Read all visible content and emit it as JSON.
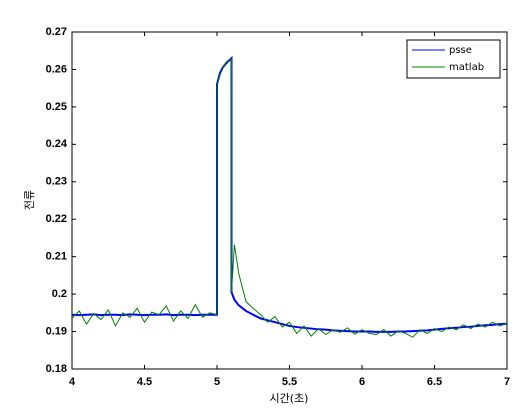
{
  "chart_data": {
    "type": "line",
    "x_label": "시간(초)",
    "y_label": "전류",
    "x": [
      4.0,
      4.05,
      4.1,
      4.15,
      4.2,
      4.25,
      4.3,
      4.35,
      4.4,
      4.45,
      4.5,
      4.55,
      4.6,
      4.65,
      4.7,
      4.75,
      4.8,
      4.85,
      4.9,
      4.95,
      5.0,
      5.0,
      5.02,
      5.04,
      5.06,
      5.08,
      5.1,
      5.1,
      5.12,
      5.15,
      5.2,
      5.25,
      5.3,
      5.35,
      5.4,
      5.45,
      5.5,
      5.55,
      5.6,
      5.65,
      5.7,
      5.75,
      5.8,
      5.85,
      5.9,
      5.95,
      6.0,
      6.05,
      6.1,
      6.15,
      6.2,
      6.25,
      6.3,
      6.35,
      6.4,
      6.45,
      6.5,
      6.55,
      6.6,
      6.65,
      6.7,
      6.75,
      6.8,
      6.85,
      6.9,
      6.95,
      7.0
    ],
    "series": [
      {
        "name": "psse",
        "color": "#0000ff",
        "values": [
          0.1945,
          0.1944,
          0.1945,
          0.1946,
          0.1944,
          0.1945,
          0.1945,
          0.1944,
          0.1946,
          0.1945,
          0.1944,
          0.1945,
          0.1945,
          0.1946,
          0.1944,
          0.1945,
          0.1945,
          0.1944,
          0.1945,
          0.1945,
          0.1945,
          0.256,
          0.259,
          0.2605,
          0.2615,
          0.2623,
          0.263,
          0.2005,
          0.1985,
          0.197,
          0.1955,
          0.1945,
          0.1935,
          0.193,
          0.1925,
          0.192,
          0.1915,
          0.1912,
          0.191,
          0.1908,
          0.1906,
          0.1905,
          0.1903,
          0.1902,
          0.1901,
          0.19,
          0.19,
          0.19,
          0.1899,
          0.1899,
          0.1899,
          0.19,
          0.19,
          0.1901,
          0.1902,
          0.1903,
          0.1905,
          0.1907,
          0.1909,
          0.191,
          0.1912,
          0.1913,
          0.1915,
          0.1917,
          0.1918,
          0.192,
          0.1921
        ]
      },
      {
        "name": "matlab",
        "color": "#008000",
        "values": [
          0.1935,
          0.1955,
          0.192,
          0.1948,
          0.1932,
          0.1958,
          0.1915,
          0.195,
          0.1938,
          0.1962,
          0.1925,
          0.1952,
          0.1945,
          0.1968,
          0.1928,
          0.1955,
          0.1935,
          0.1972,
          0.1938,
          0.195,
          0.1945,
          0.2555,
          0.2585,
          0.2602,
          0.2618,
          0.2625,
          0.2628,
          0.2005,
          0.2132,
          0.2055,
          0.198,
          0.1962,
          0.1945,
          0.1925,
          0.194,
          0.1912,
          0.1925,
          0.1895,
          0.1915,
          0.1888,
          0.1908,
          0.1892,
          0.1905,
          0.1898,
          0.191,
          0.1893,
          0.1905,
          0.1895,
          0.1892,
          0.1905,
          0.1888,
          0.1902,
          0.1895,
          0.1885,
          0.1905,
          0.1895,
          0.1908,
          0.19,
          0.1912,
          0.1905,
          0.1918,
          0.1908,
          0.192,
          0.1912,
          0.1925,
          0.1915,
          0.1922
        ]
      }
    ],
    "xlim": [
      4,
      7
    ],
    "xticks": [
      4,
      4.5,
      5,
      5.5,
      6,
      6.5,
      7
    ],
    "ylim": [
      0.18,
      0.27
    ],
    "yticks": [
      0.18,
      0.19,
      0.2,
      0.21,
      0.22,
      0.23,
      0.24,
      0.25,
      0.26,
      0.27
    ],
    "legend": "top-right",
    "grid": false
  }
}
